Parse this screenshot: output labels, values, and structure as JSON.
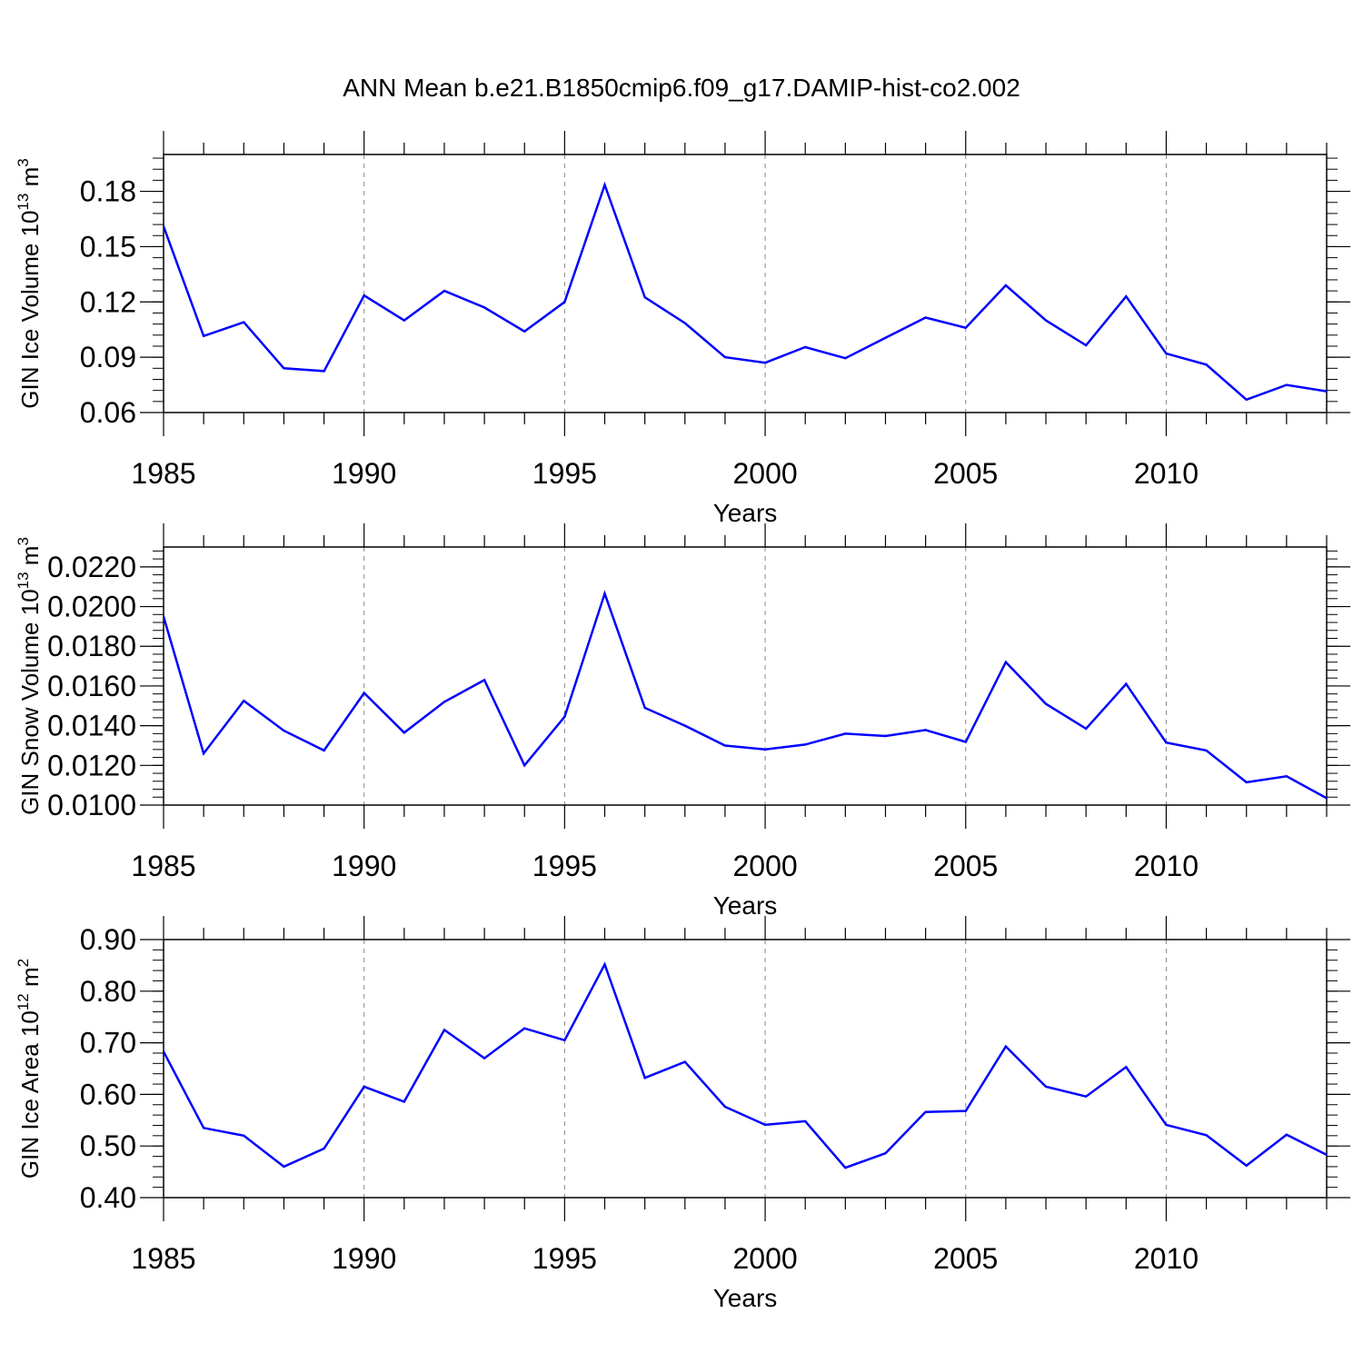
{
  "title": "ANN Mean b.e21.B1850cmip6.f09_g17.DAMIP-hist-co2.002",
  "line_color": "#0000ff",
  "grid_color": "#888888",
  "chart_data": [
    {
      "type": "line",
      "xlabel": "Years",
      "ylabel": {
        "main": "GIN Ice Volume 10",
        "sup1": "13",
        "mid": " m",
        "sup2": "3"
      },
      "xlim": [
        1985,
        2014
      ],
      "ylim": [
        0.06,
        0.2
      ],
      "x_ticks": [
        1985,
        1990,
        1995,
        2000,
        2005,
        2010
      ],
      "y_ticks": [
        0.06,
        0.09,
        0.12,
        0.15,
        0.18
      ],
      "y_tick_labels": [
        "0.06",
        "0.09",
        "0.12",
        "0.15",
        "0.18"
      ],
      "y_minor_step": 0.006,
      "grid": "vertical dashed at major x ticks",
      "x": [
        1985,
        1986,
        1987,
        1988,
        1989,
        1990,
        1991,
        1992,
        1993,
        1994,
        1995,
        1996,
        1997,
        1998,
        1999,
        2000,
        2001,
        2002,
        2003,
        2004,
        2005,
        2006,
        2007,
        2008,
        2009,
        2010,
        2011,
        2012,
        2013,
        2014
      ],
      "values": [
        0.161,
        0.1015,
        0.109,
        0.084,
        0.0825,
        0.1235,
        0.11,
        0.126,
        0.117,
        0.104,
        0.12,
        0.1835,
        0.1225,
        0.1085,
        0.09,
        0.087,
        0.0955,
        0.0895,
        0.1005,
        0.1115,
        0.106,
        0.129,
        0.11,
        0.0965,
        0.123,
        0.092,
        0.086,
        0.067,
        0.075,
        0.0715
      ]
    },
    {
      "type": "line",
      "xlabel": "Years",
      "ylabel": {
        "main": "GIN Snow Volume 10",
        "sup1": "13",
        "mid": " m",
        "sup2": "3"
      },
      "xlim": [
        1985,
        2014
      ],
      "ylim": [
        0.01,
        0.023
      ],
      "x_ticks": [
        1985,
        1990,
        1995,
        2000,
        2005,
        2010
      ],
      "y_ticks": [
        0.01,
        0.012,
        0.014,
        0.016,
        0.018,
        0.02,
        0.022
      ],
      "y_tick_labels": [
        "0.0100",
        "0.0120",
        "0.0140",
        "0.0160",
        "0.0180",
        "0.0200",
        "0.0220"
      ],
      "y_minor_step": 0.0004,
      "grid": "vertical dashed at major x ticks",
      "x": [
        1985,
        1986,
        1987,
        1988,
        1989,
        1990,
        1991,
        1992,
        1993,
        1994,
        1995,
        1996,
        1997,
        1998,
        1999,
        2000,
        2001,
        2002,
        2003,
        2004,
        2005,
        2006,
        2007,
        2008,
        2009,
        2010,
        2011,
        2012,
        2013,
        2014
      ],
      "values": [
        0.0195,
        0.0126,
        0.01525,
        0.01375,
        0.01275,
        0.01565,
        0.01365,
        0.0152,
        0.0163,
        0.012,
        0.01445,
        0.02065,
        0.0149,
        0.014,
        0.013,
        0.0128,
        0.01305,
        0.0136,
        0.01348,
        0.01378,
        0.01318,
        0.0172,
        0.0151,
        0.01385,
        0.0161,
        0.01315,
        0.01275,
        0.01115,
        0.01145,
        0.01035
      ]
    },
    {
      "type": "line",
      "xlabel": "Years",
      "ylabel": {
        "main": "GIN Ice Area 10",
        "sup1": "12",
        "mid": " m",
        "sup2": "2"
      },
      "xlim": [
        1985,
        2014
      ],
      "ylim": [
        0.4,
        0.9
      ],
      "x_ticks": [
        1985,
        1990,
        1995,
        2000,
        2005,
        2010
      ],
      "y_ticks": [
        0.4,
        0.5,
        0.6,
        0.7,
        0.8,
        0.9
      ],
      "y_tick_labels": [
        "0.40",
        "0.50",
        "0.60",
        "0.70",
        "0.80",
        "0.90"
      ],
      "y_minor_step": 0.02,
      "grid": "vertical dashed at major x ticks",
      "x": [
        1985,
        1986,
        1987,
        1988,
        1989,
        1990,
        1991,
        1992,
        1993,
        1994,
        1995,
        1996,
        1997,
        1998,
        1999,
        2000,
        2001,
        2002,
        2003,
        2004,
        2005,
        2006,
        2007,
        2008,
        2009,
        2010,
        2011,
        2012,
        2013,
        2014
      ],
      "values": [
        0.683,
        0.535,
        0.52,
        0.46,
        0.495,
        0.615,
        0.586,
        0.725,
        0.67,
        0.728,
        0.705,
        0.852,
        0.632,
        0.663,
        0.576,
        0.541,
        0.548,
        0.458,
        0.486,
        0.566,
        0.568,
        0.693,
        0.615,
        0.596,
        0.653,
        0.541,
        0.521,
        0.462,
        0.522,
        0.483
      ]
    }
  ]
}
